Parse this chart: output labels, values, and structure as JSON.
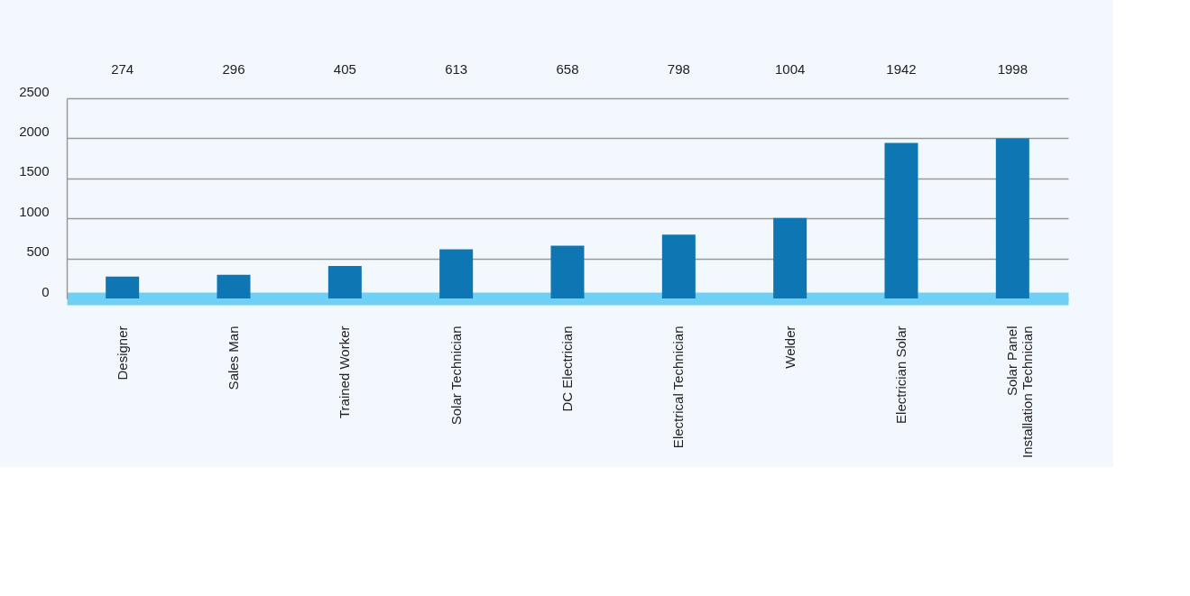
{
  "chart_data": {
    "type": "bar",
    "categories": [
      "Designer",
      "Sales Man",
      "Trained Worker",
      "Solar Technician",
      "DC Electrician",
      "Electrical Technician",
      "Welder",
      "Electrician Solar",
      "Solar Panel Installation Technician"
    ],
    "values": [
      274,
      296,
      405,
      613,
      658,
      798,
      1004,
      1942,
      1998
    ],
    "color": "#0f76b4",
    "ylim": [
      0,
      2500
    ],
    "yticks": [
      0,
      500,
      1000,
      1500,
      2000,
      2500
    ],
    "grid": "y",
    "data_labels": true
  }
}
